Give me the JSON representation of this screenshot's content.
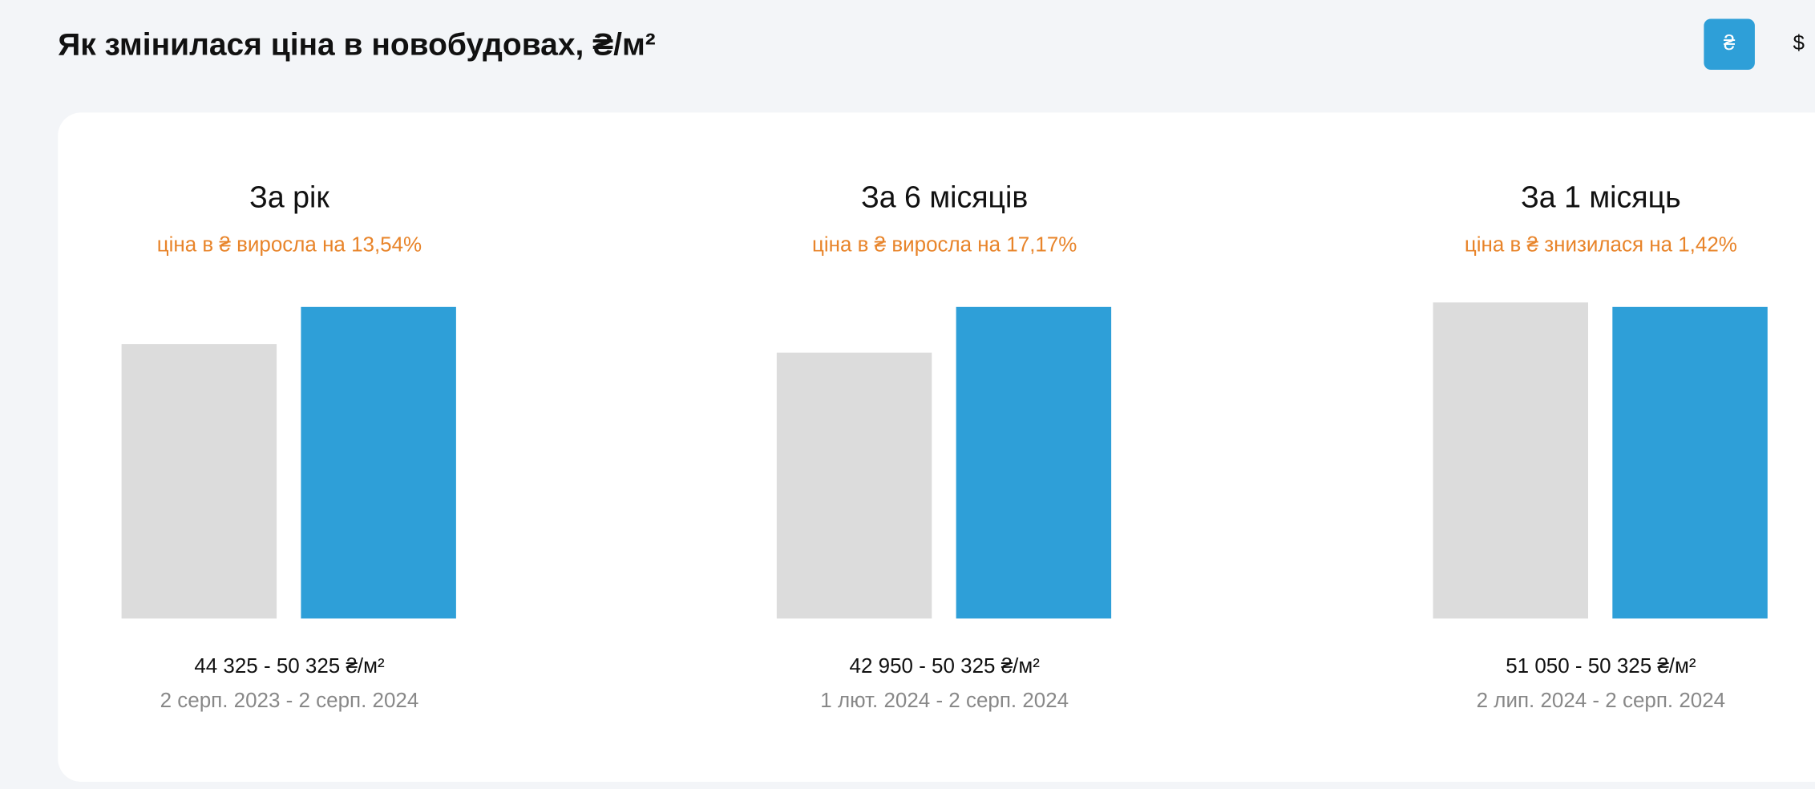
{
  "header": {
    "title": "Як змінилася ціна в новобудовах, ₴/м²"
  },
  "currency_buttons": [
    {
      "label": "₴",
      "active": true
    },
    {
      "label": "$",
      "active": false
    }
  ],
  "chart_data": [
    {
      "type": "bar",
      "title": "За рік",
      "subtitle": "ціна в ₴ виросла на 13,54%",
      "values": [
        44325,
        50325
      ],
      "colors": [
        "#dcdcdc",
        "#2e9fd8"
      ],
      "ylim": [
        0,
        51050
      ],
      "range_label": "44 325 - 50 325 ₴/м²",
      "period": "2 серп. 2023 - 2 серп. 2024"
    },
    {
      "type": "bar",
      "title": "За 6 місяців",
      "subtitle": "ціна в ₴ виросла на 17,17%",
      "values": [
        42950,
        50325
      ],
      "colors": [
        "#dcdcdc",
        "#2e9fd8"
      ],
      "ylim": [
        0,
        51050
      ],
      "range_label": "42 950 - 50 325 ₴/м²",
      "period": "1 лют. 2024 - 2 серп. 2024"
    },
    {
      "type": "bar",
      "title": "За 1 місяць",
      "subtitle": "ціна в ₴ знизилася на 1,42%",
      "values": [
        51050,
        50325
      ],
      "colors": [
        "#dcdcdc",
        "#2e9fd8"
      ],
      "ylim": [
        0,
        51050
      ],
      "range_label": "51 050 - 50 325 ₴/м²",
      "period": "2 лип. 2024 - 2 серп. 2024"
    }
  ]
}
